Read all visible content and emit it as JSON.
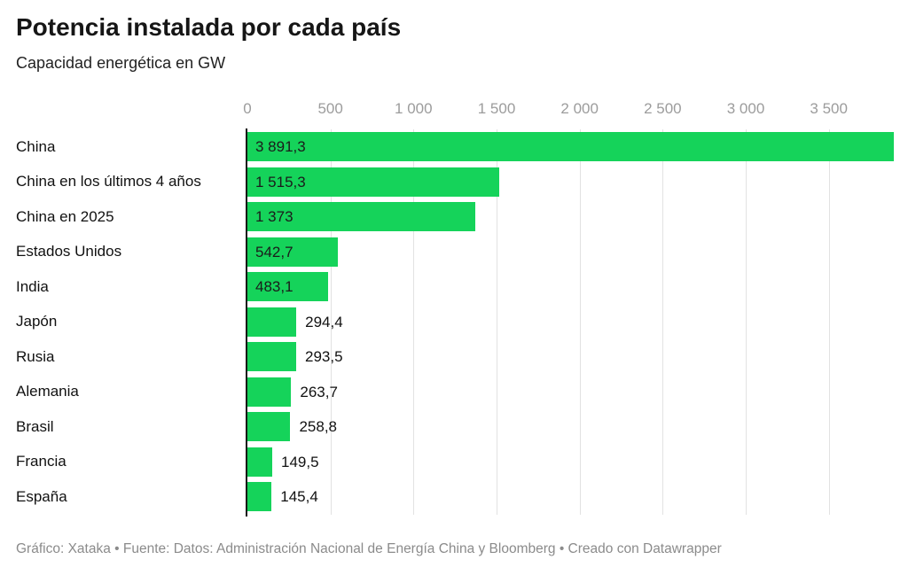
{
  "header": {
    "title": "Potencia instalada por cada país",
    "subtitle": "Capacidad energética en GW"
  },
  "footer": {
    "text": "Gráfico: Xataka • Fuente: Datos: Administración Nacional de Energía China y Bloomberg • Creado con Datawrapper"
  },
  "colors": {
    "bar": "#15d35a",
    "grid": "#e2e2e2",
    "axis": "#161616",
    "tick_label": "#9c9c9c"
  },
  "chart_data": {
    "type": "bar",
    "orientation": "horizontal",
    "title": "Potencia instalada por cada país",
    "subtitle": "Capacidad energética en GW",
    "unit": "GW",
    "xlim": [
      0,
      3891.3
    ],
    "grid": true,
    "x_ticks": [
      {
        "value": 0,
        "label": "0"
      },
      {
        "value": 500,
        "label": "500"
      },
      {
        "value": 1000,
        "label": "1 000"
      },
      {
        "value": 1500,
        "label": "1 500"
      },
      {
        "value": 2000,
        "label": "2 000"
      },
      {
        "value": 2500,
        "label": "2 500"
      },
      {
        "value": 3000,
        "label": "3 000"
      },
      {
        "value": 3500,
        "label": "3 500"
      }
    ],
    "rows": [
      {
        "category": "China",
        "value": 3891.3,
        "value_label": "3 891,3",
        "label_inside": true
      },
      {
        "category": "China en los últimos 4 años",
        "value": 1515.3,
        "value_label": "1 515,3",
        "label_inside": true
      },
      {
        "category": "China en 2025",
        "value": 1373,
        "value_label": "1 373",
        "label_inside": true
      },
      {
        "category": "Estados Unidos",
        "value": 542.7,
        "value_label": "542,7",
        "label_inside": true
      },
      {
        "category": "India",
        "value": 483.1,
        "value_label": "483,1",
        "label_inside": true
      },
      {
        "category": "Japón",
        "value": 294.4,
        "value_label": "294,4",
        "label_inside": false
      },
      {
        "category": "Rusia",
        "value": 293.5,
        "value_label": "293,5",
        "label_inside": false
      },
      {
        "category": "Alemania",
        "value": 263.7,
        "value_label": "263,7",
        "label_inside": false
      },
      {
        "category": "Brasil",
        "value": 258.8,
        "value_label": "258,8",
        "label_inside": false
      },
      {
        "category": "Francia",
        "value": 149.5,
        "value_label": "149,5",
        "label_inside": false
      },
      {
        "category": "España",
        "value": 145.4,
        "value_label": "145,4",
        "label_inside": false
      }
    ]
  }
}
